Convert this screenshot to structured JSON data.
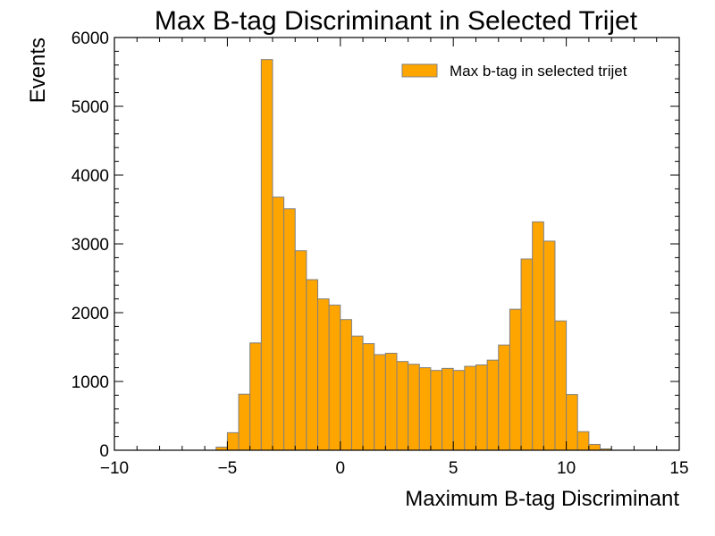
{
  "chart_data": {
    "type": "bar",
    "title": "Max B-tag Discriminant in Selected Trijet",
    "xlabel": "Maximum B-tag Discriminant",
    "ylabel": "Events",
    "xlim": [
      -10,
      15
    ],
    "ylim": [
      0,
      6000
    ],
    "x_ticks": [
      -10,
      -5,
      0,
      5,
      10,
      15
    ],
    "x_tick_labels": [
      "−10",
      "−5",
      "0",
      "5",
      "10",
      "15"
    ],
    "y_ticks": [
      0,
      1000,
      2000,
      3000,
      4000,
      5000,
      6000
    ],
    "y_tick_labels": [
      "0",
      "1000",
      "2000",
      "3000",
      "4000",
      "5000",
      "6000"
    ],
    "grid": false,
    "legend_position": "top-right",
    "style": "filled-histogram",
    "series": [
      {
        "name": "Max b-tag in selected trijet",
        "color": "#ffa500",
        "edge_color": "#808080",
        "bin_width": 0.5,
        "bin_edges_start": -5.5,
        "values": [
          45,
          255,
          815,
          1560,
          5680,
          3680,
          3510,
          2900,
          2480,
          2200,
          2110,
          1900,
          1660,
          1550,
          1390,
          1410,
          1290,
          1250,
          1200,
          1160,
          1190,
          1160,
          1220,
          1240,
          1310,
          1530,
          2050,
          2780,
          3320,
          3040,
          1880,
          810,
          270,
          85,
          20
        ]
      }
    ]
  }
}
